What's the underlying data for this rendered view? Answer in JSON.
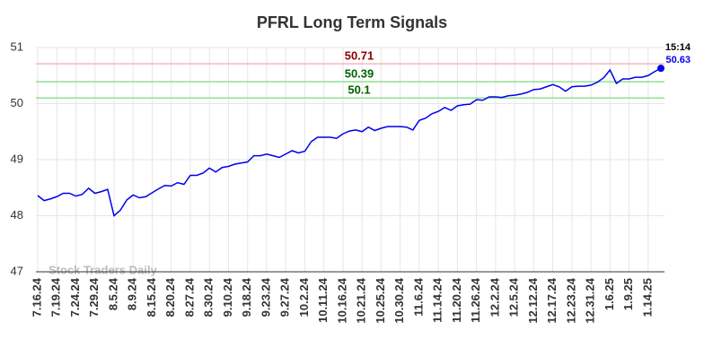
{
  "chart_data": {
    "type": "line",
    "title": "PFRL Long Term Signals",
    "watermark": "Stock Traders Daily",
    "categories": [
      "7.16.24",
      null,
      null,
      "7.19.24",
      null,
      null,
      "7.24.24",
      null,
      null,
      "7.29.24",
      null,
      null,
      "8.5.24",
      null,
      null,
      "8.9.24",
      null,
      null,
      "8.15.24",
      null,
      null,
      "8.20.24",
      null,
      null,
      "8.27.24",
      null,
      null,
      "8.30.24",
      null,
      null,
      "9.10.24",
      null,
      null,
      "9.18.24",
      null,
      null,
      "9.23.24",
      null,
      null,
      "9.27.24",
      null,
      null,
      "10.2.24",
      null,
      null,
      "10.11.24",
      null,
      null,
      "10.16.24",
      null,
      null,
      "10.21.24",
      null,
      null,
      "10.25.24",
      null,
      null,
      "10.30.24",
      null,
      null,
      "11.6.24",
      null,
      null,
      "11.14.24",
      null,
      null,
      "11.20.24",
      null,
      null,
      "11.26.24",
      null,
      null,
      "12.2.24",
      null,
      null,
      "12.5.24",
      null,
      null,
      "12.12.24",
      null,
      null,
      "12.17.24",
      null,
      null,
      "12.23.24",
      null,
      null,
      "12.31.24",
      null,
      null,
      "1.6.25",
      null,
      null,
      "1.9.25",
      null,
      null,
      "1.14.25",
      null,
      null
    ],
    "series": [
      {
        "name": "PFRL",
        "color": "#0000ee",
        "values": [
          48.36,
          48.27,
          48.3,
          48.34,
          48.4,
          48.4,
          48.35,
          48.38,
          48.49,
          48.4,
          48.43,
          48.47,
          48.0,
          48.1,
          48.28,
          48.37,
          48.32,
          48.34,
          48.41,
          48.48,
          48.54,
          48.53,
          48.59,
          48.56,
          48.72,
          48.72,
          48.76,
          48.85,
          48.78,
          48.86,
          48.88,
          48.92,
          48.94,
          48.96,
          49.07,
          49.07,
          49.1,
          49.07,
          49.04,
          49.1,
          49.16,
          49.12,
          49.15,
          49.32,
          49.4,
          49.4,
          49.4,
          49.38,
          49.46,
          49.51,
          49.53,
          49.5,
          49.58,
          49.52,
          49.56,
          49.59,
          49.59,
          49.59,
          49.58,
          49.53,
          49.7,
          49.74,
          49.82,
          49.86,
          49.93,
          49.88,
          49.96,
          49.98,
          49.99,
          50.07,
          50.06,
          50.12,
          50.12,
          50.11,
          50.14,
          50.15,
          50.17,
          50.2,
          50.25,
          50.26,
          50.3,
          50.34,
          50.3,
          50.22,
          50.3,
          50.31,
          50.31,
          50.33,
          50.38,
          50.46,
          50.6,
          50.36,
          50.44,
          50.44,
          50.47,
          50.47,
          50.5,
          50.57,
          50.63
        ]
      }
    ],
    "last_time": "15:14",
    "hlines": [
      {
        "value": 50.71,
        "color": "#f4b8b8",
        "label_color": "#8b0000"
      },
      {
        "value": 50.39,
        "color": "#90e090",
        "label_color": "#006400"
      },
      {
        "value": 50.1,
        "color": "#90e090",
        "label_color": "#006400"
      }
    ],
    "ylim": [
      47,
      51
    ],
    "yticks": [
      47,
      48,
      49,
      50,
      51
    ],
    "grid": true
  }
}
